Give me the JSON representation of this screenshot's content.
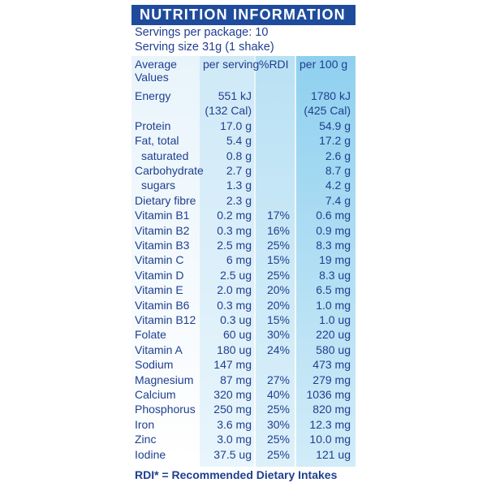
{
  "title": "NUTRITION INFORMATION",
  "servings_per_package": "Servings per package: 10",
  "serving_size": "Serving size 31g (1 shake)",
  "headers": {
    "nutrient_line1": "Average",
    "nutrient_line2": "Values",
    "per_serving": "per serving",
    "rdi": "%RDI",
    "per_100g": "per 100 g"
  },
  "rows": [
    {
      "name": "Energy",
      "per_serving": "551 kJ",
      "rdi": "",
      "per_100g": "1780 kJ"
    },
    {
      "name": "",
      "per_serving": "(132 Cal)",
      "rdi": "",
      "per_100g": "(425 Cal)"
    },
    {
      "name": "Protein",
      "per_serving": "17.0 g",
      "rdi": "",
      "per_100g": "54.9 g"
    },
    {
      "name": "Fat, total",
      "per_serving": "5.4 g",
      "rdi": "",
      "per_100g": "17.2 g"
    },
    {
      "name": "saturated",
      "per_serving": "0.8 g",
      "rdi": "",
      "per_100g": "2.6 g"
    },
    {
      "name": "Carbohydrate",
      "per_serving": "2.7 g",
      "rdi": "",
      "per_100g": "8.7 g"
    },
    {
      "name": "sugars",
      "per_serving": "1.3 g",
      "rdi": "",
      "per_100g": "4.2 g"
    },
    {
      "name": "Dietary fibre",
      "per_serving": "2.3 g",
      "rdi": "",
      "per_100g": "7.4 g"
    },
    {
      "name": "Vitamin B1",
      "per_serving": "0.2 mg",
      "rdi": "17%",
      "per_100g": "0.6 mg"
    },
    {
      "name": "Vitamin B2",
      "per_serving": "0.3 mg",
      "rdi": "16%",
      "per_100g": "0.9 mg"
    },
    {
      "name": "Vitamin B3",
      "per_serving": "2.5 mg",
      "rdi": "25%",
      "per_100g": "8.3 mg"
    },
    {
      "name": "Vitamin C",
      "per_serving": "6 mg",
      "rdi": "15%",
      "per_100g": "19 mg"
    },
    {
      "name": "Vitamin D",
      "per_serving": "2.5 ug",
      "rdi": "25%",
      "per_100g": "8.3 ug"
    },
    {
      "name": "Vitamin E",
      "per_serving": "2.0 mg",
      "rdi": "20%",
      "per_100g": "6.5 mg"
    },
    {
      "name": "Vitamin B6",
      "per_serving": "0.3 mg",
      "rdi": "20%",
      "per_100g": "1.0 mg"
    },
    {
      "name": "Vitamin B12",
      "per_serving": "0.3 ug",
      "rdi": "15%",
      "per_100g": "1.0 ug"
    },
    {
      "name": "Folate",
      "per_serving": "60 ug",
      "rdi": "30%",
      "per_100g": "220 ug"
    },
    {
      "name": "Vitamin A",
      "per_serving": "180 ug",
      "rdi": "24%",
      "per_100g": "580 ug"
    },
    {
      "name": "Sodium",
      "per_serving": "147 mg",
      "rdi": "",
      "per_100g": "473 mg"
    },
    {
      "name": "Magnesium",
      "per_serving": "87 mg",
      "rdi": "27%",
      "per_100g": "279 mg"
    },
    {
      "name": "Calcium",
      "per_serving": "320 mg",
      "rdi": "40%",
      "per_100g": "1036 mg"
    },
    {
      "name": "Phosphorus",
      "per_serving": "250 mg",
      "rdi": "25%",
      "per_100g": "820 mg"
    },
    {
      "name": "Iron",
      "per_serving": "3.6 mg",
      "rdi": "30%",
      "per_100g": "12.3 mg"
    },
    {
      "name": "Zinc",
      "per_serving": "3.0 mg",
      "rdi": "25%",
      "per_100g": "10.0 mg"
    },
    {
      "name": "Iodine",
      "per_serving": "37.5 ug",
      "rdi": "25%",
      "per_100g": "121 ug"
    }
  ],
  "footnote": "RDI* = Recommended Dietary Intakes",
  "colors": {
    "title_bar": "#1f4b9c",
    "text": "#1f3f8f",
    "per_serving_column": "#cfe9f7",
    "rdi_column": "#b9e1f4",
    "per_100g_column": "#8fd0ef"
  }
}
